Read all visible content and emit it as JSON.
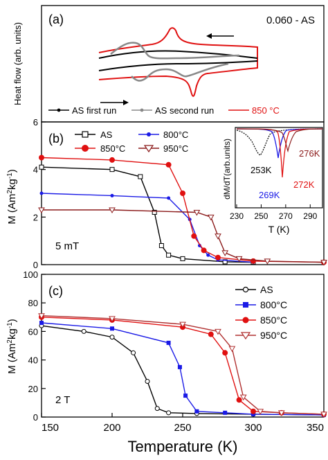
{
  "chart_data": [
    {
      "panel": "a",
      "type": "line",
      "panel_label": "(a)",
      "ylabel": "Heat flow (arb. units)",
      "annotation": "0.060 - AS",
      "legend_placement": "bottom",
      "legend": [
        {
          "label": "AS first run",
          "color": "#000000",
          "marker": "dot"
        },
        {
          "label": "AS second run",
          "color": "#888888",
          "marker": "dot"
        },
        {
          "label": "850 °C",
          "color": "#e01010",
          "marker": "line"
        }
      ],
      "arrows": [
        "heating (right)",
        "cooling (left)"
      ],
      "x_axis": "shared Temperature (K)",
      "series_colors": {
        "first_run": "#000000",
        "second_run": "#888888",
        "850C": "#e01010"
      }
    },
    {
      "panel": "b",
      "type": "scatter",
      "panel_label": "(b)",
      "ylabel": "M (Am²kg⁻¹)",
      "ylim": [
        0,
        6
      ],
      "yticks": [
        "0",
        "2",
        "4",
        "6"
      ],
      "xlim": [
        150,
        350
      ],
      "field_label": "5 mT",
      "legend_placement": "top-center",
      "series": [
        {
          "name": "AS",
          "color": "#000000",
          "marker": "open-square",
          "x": [
            150,
            200,
            220,
            230,
            235,
            240,
            250,
            280,
            300
          ],
          "y": [
            4.1,
            4.0,
            3.7,
            2.2,
            0.8,
            0.4,
            0.25,
            0.12,
            0.1
          ]
        },
        {
          "name": "800°C",
          "color": "#1a1ae6",
          "marker": "filled-dot",
          "x": [
            150,
            200,
            240,
            255,
            262,
            268,
            275,
            300
          ],
          "y": [
            3.0,
            2.9,
            2.8,
            1.9,
            0.8,
            0.4,
            0.2,
            0.1
          ]
        },
        {
          "name": "850°C",
          "color": "#e01010",
          "marker": "half-filled-circle",
          "x": [
            150,
            200,
            240,
            250,
            258,
            265,
            275,
            300,
            350
          ],
          "y": [
            4.5,
            4.4,
            4.2,
            3.0,
            1.2,
            0.6,
            0.3,
            0.15,
            0.1
          ]
        },
        {
          "name": "950°C",
          "color": "#8b1a1a",
          "marker": "open-triangle-down",
          "x": [
            150,
            200,
            260,
            270,
            275,
            280,
            290,
            310,
            350
          ],
          "y": [
            2.3,
            2.3,
            2.2,
            2.0,
            1.2,
            0.5,
            0.25,
            0.15,
            0.1
          ]
        }
      ],
      "inset": {
        "ylabel": "dM/dT(arb.units)",
        "xlabel": "T (K)",
        "xlim": [
          230,
          300
        ],
        "xticks": [
          "230",
          "250",
          "270",
          "290"
        ],
        "peaks": [
          {
            "label": "253K",
            "x": 253,
            "color": "#000000"
          },
          {
            "label": "269K",
            "x": 269,
            "color": "#1a1ae6"
          },
          {
            "label": "272K",
            "x": 272,
            "color": "#e01010"
          },
          {
            "label": "276K",
            "x": 276,
            "color": "#8b1a1a"
          }
        ]
      }
    },
    {
      "panel": "c",
      "type": "scatter",
      "panel_label": "(c)",
      "ylabel": "M (Am²kg⁻¹)",
      "ylim": [
        0,
        100
      ],
      "yticks": [
        "0",
        "20",
        "40",
        "60",
        "80",
        "100"
      ],
      "xlim": [
        150,
        350
      ],
      "xticks": [
        "150",
        "200",
        "250",
        "300",
        "350"
      ],
      "xlabel": "Temperature (K)",
      "field_label": "2 T",
      "legend_placement": "top-right",
      "series": [
        {
          "name": "AS",
          "color": "#000000",
          "marker": "open-circle",
          "x": [
            150,
            180,
            200,
            215,
            225,
            232,
            240,
            260,
            300,
            350
          ],
          "y": [
            64,
            60,
            56,
            45,
            25,
            6,
            3,
            2.5,
            2,
            1.5
          ]
        },
        {
          "name": "800°C",
          "color": "#1a1ae6",
          "marker": "filled-square",
          "x": [
            150,
            200,
            240,
            248,
            252,
            260,
            280,
            300,
            350
          ],
          "y": [
            66,
            62,
            52,
            35,
            15,
            4,
            3,
            2,
            1.5
          ]
        },
        {
          "name": "850°C",
          "color": "#e01010",
          "marker": "half-filled-circle",
          "x": [
            150,
            200,
            250,
            270,
            280,
            290,
            300,
            320,
            350
          ],
          "y": [
            70,
            68,
            63,
            58,
            45,
            12,
            4,
            3,
            2
          ]
        },
        {
          "name": "950°C",
          "color": "#b03030",
          "marker": "open-triangle-down",
          "x": [
            150,
            200,
            250,
            275,
            285,
            293,
            305,
            320,
            350
          ],
          "y": [
            71,
            69,
            65,
            60,
            48,
            14,
            4,
            3,
            2
          ]
        }
      ]
    }
  ]
}
